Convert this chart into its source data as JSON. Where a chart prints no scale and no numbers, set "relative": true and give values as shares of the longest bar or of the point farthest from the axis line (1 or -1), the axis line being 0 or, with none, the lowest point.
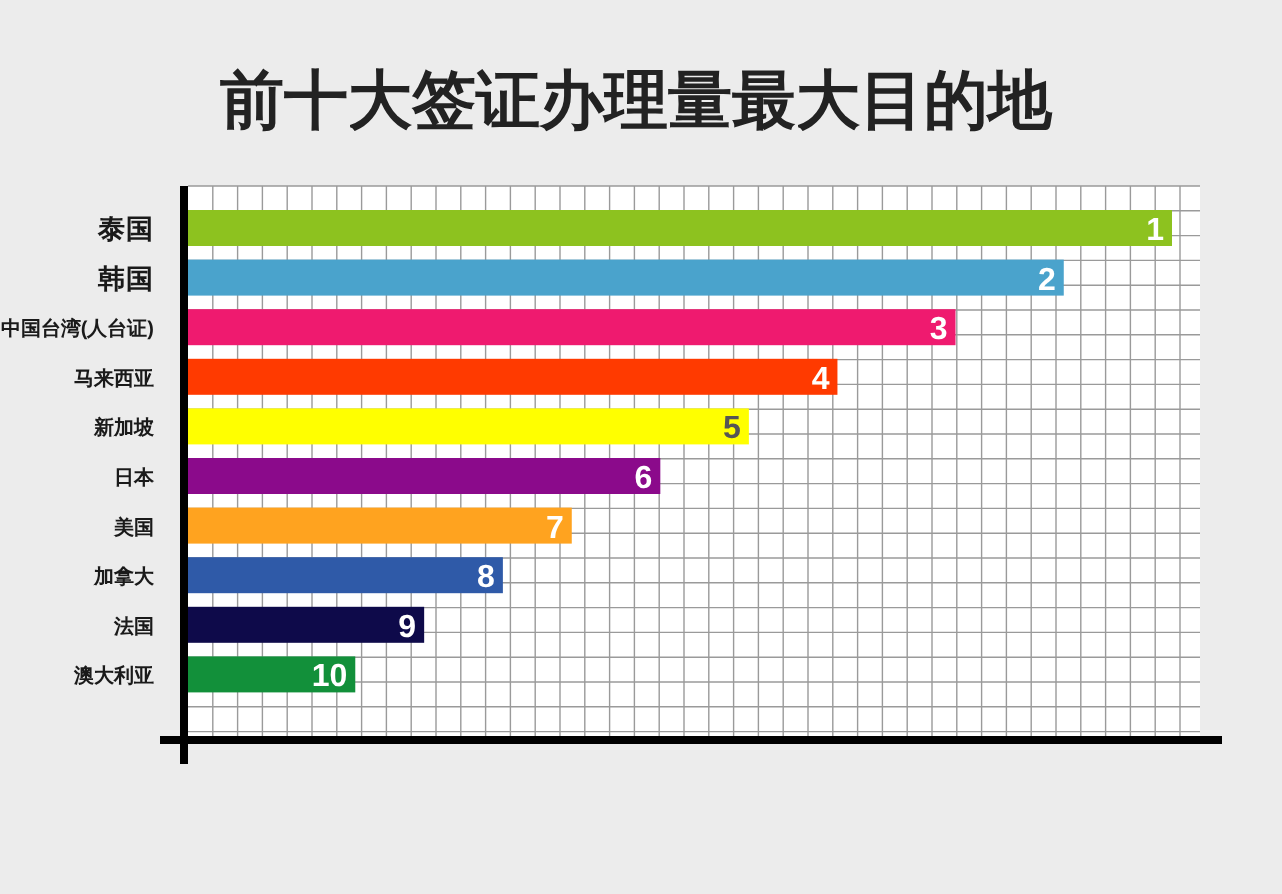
{
  "chart_data": {
    "type": "bar",
    "orientation": "horizontal",
    "relative": true,
    "title": "前十大签证办理量最大目的地",
    "categories": [
      "泰国",
      "韩国",
      "中国台湾(人台证)",
      "马来西亚",
      "新加坡",
      "日本",
      "美国",
      "加拿大",
      "法国",
      "澳大利亚"
    ],
    "values": [
      1,
      0.89,
      0.78,
      0.66,
      0.57,
      0.48,
      0.39,
      0.32,
      0.24,
      0.17
    ],
    "colors": [
      "#8dc21f",
      "#4aa3cc",
      "#ef1a6f",
      "#ff3a00",
      "#ffff00",
      "#8b0a8b",
      "#ffa31f",
      "#2f5aa8",
      "#0e0a4a",
      "#12903a"
    ],
    "annotations": [
      {
        "text": "1",
        "x": 1,
        "y": "泰国"
      },
      {
        "text": "2",
        "x": 0.89,
        "y": "韩国"
      },
      {
        "text": "3",
        "x": 0.78,
        "y": "中国台湾(人台证)"
      },
      {
        "text": "4",
        "x": 0.66,
        "y": "马来西亚"
      },
      {
        "text": "5",
        "x": 0.57,
        "y": "新加坡"
      },
      {
        "text": "6",
        "x": 0.48,
        "y": "日本"
      },
      {
        "text": "7",
        "x": 0.39,
        "y": "美国"
      },
      {
        "text": "8",
        "x": 0.32,
        "y": "加拿大"
      },
      {
        "text": "9",
        "x": 0.24,
        "y": "法国"
      },
      {
        "text": "10",
        "x": 0.17,
        "y": "澳大利亚"
      }
    ],
    "grid": true
  }
}
